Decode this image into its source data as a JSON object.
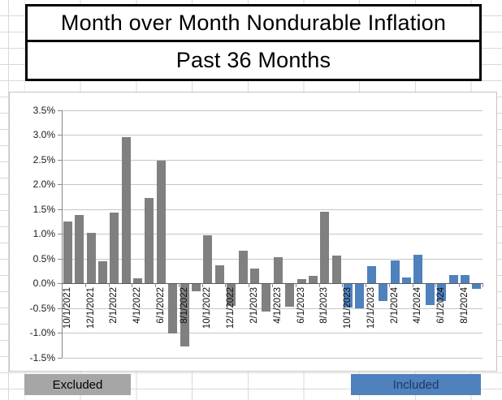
{
  "titles": {
    "line1": "Month over Month Nondurable Inflation",
    "line2": "Past 36 Months"
  },
  "legend": {
    "excluded_label": "Excluded",
    "included_label": "Included"
  },
  "colors": {
    "excluded_bar": "#808080",
    "included_bar": "#4f81bd",
    "legend_excluded_bg": "#a6a6a6",
    "legend_included_bg": "#4f81bd",
    "gridline": "#c6c6c6",
    "zero_axis": "#595959"
  },
  "chart_data": {
    "type": "bar",
    "title": "Month over Month Nondurable Inflation",
    "subtitle": "Past 36 Months",
    "ylabel": "",
    "xlabel": "",
    "ylim": [
      -1.5,
      3.5
    ],
    "grid": true,
    "y_tick_labels": [
      "3.5%",
      "3.0%",
      "2.5%",
      "2.0%",
      "1.5%",
      "1.0%",
      "0.5%",
      "0.0%",
      "-0.5%",
      "-1.0%",
      "-1.5%"
    ],
    "x_tick_labels": [
      "10/1/2021",
      "12/1/2021",
      "2/1/2022",
      "4/1/2022",
      "6/1/2022",
      "8/1/2022",
      "10/1/2022",
      "12/1/2022",
      "2/1/2023",
      "4/1/2023",
      "6/1/2023",
      "8/1/2023",
      "10/1/2023",
      "12/1/2023",
      "2/1/2024",
      "4/1/2024",
      "6/1/2024",
      "8/1/2024"
    ],
    "x_label_every": 2,
    "series": [
      {
        "name": "Excluded",
        "color": "#808080",
        "months": [
          "10/1/2021",
          "11/1/2021",
          "12/1/2021",
          "1/1/2022",
          "2/1/2022",
          "3/1/2022",
          "4/1/2022",
          "5/1/2022",
          "6/1/2022",
          "7/1/2022",
          "8/1/2022",
          "9/1/2022",
          "10/1/2022",
          "11/1/2022",
          "12/1/2022",
          "1/1/2023",
          "2/1/2023",
          "3/1/2023",
          "4/1/2023",
          "5/1/2023",
          "6/1/2023",
          "7/1/2023",
          "8/1/2023",
          "9/1/2023"
        ],
        "values": [
          1.25,
          1.38,
          1.02,
          0.45,
          1.42,
          2.95,
          0.1,
          1.72,
          2.47,
          -1.0,
          -1.26,
          -0.15,
          0.97,
          0.36,
          -0.45,
          0.65,
          0.3,
          -0.55,
          0.52,
          -0.46,
          0.08,
          0.14,
          1.45,
          0.56
        ]
      },
      {
        "name": "Included",
        "color": "#4f81bd",
        "months": [
          "10/1/2023",
          "11/1/2023",
          "12/1/2023",
          "1/1/2024",
          "2/1/2024",
          "3/1/2024",
          "4/1/2024",
          "5/1/2024",
          "6/1/2024",
          "7/1/2024",
          "8/1/2024",
          "9/1/2024"
        ],
        "values": [
          -0.47,
          -0.49,
          0.35,
          -0.34,
          0.46,
          0.11,
          0.58,
          -0.42,
          -0.34,
          0.16,
          0.16,
          -0.1
        ]
      }
    ]
  }
}
